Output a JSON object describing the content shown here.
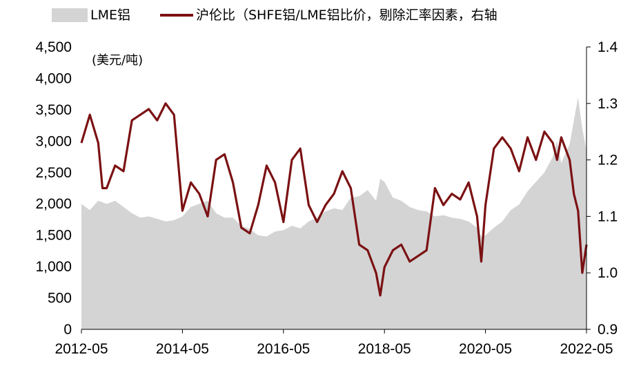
{
  "chart_data": {
    "type": "area+line",
    "legend": [
      {
        "label": "LME铝",
        "color": "#d4d4d4",
        "kind": "area"
      },
      {
        "label": "沪伦比（SHFE铝/LME铝比价，剔除汇率因素，右轴",
        "color": "#7b1113",
        "kind": "line"
      }
    ],
    "unit_label": "(美元/吨)",
    "x_ticks": [
      "2012-05",
      "2014-05",
      "2016-05",
      "2018-05",
      "2020-05",
      "2022-05"
    ],
    "x_range": [
      "2012-05",
      "2022-05"
    ],
    "y_left": {
      "ticks": [
        "0",
        "500",
        "1,000",
        "1,500",
        "2,000",
        "2,500",
        "3,000",
        "3,500",
        "4,000",
        "4,500"
      ],
      "range": [
        0,
        4500
      ]
    },
    "y_right": {
      "ticks": [
        "0.9",
        "1.0",
        "1.1",
        "1.2",
        "1.3",
        "1.4"
      ],
      "range": [
        0.9,
        1.4
      ]
    },
    "series": [
      {
        "name": "LME铝",
        "axis": "left",
        "x": [
          "2012-05",
          "2012-06",
          "2012-07",
          "2012-09",
          "2012-11",
          "2013-01",
          "2013-03",
          "2013-05",
          "2013-07",
          "2013-09",
          "2013-11",
          "2014-01",
          "2014-03",
          "2014-05",
          "2014-07",
          "2014-09",
          "2014-11",
          "2015-01",
          "2015-03",
          "2015-05",
          "2015-07",
          "2015-09",
          "2015-11",
          "2016-01",
          "2016-03",
          "2016-05",
          "2016-07",
          "2016-09",
          "2016-11",
          "2017-01",
          "2017-03",
          "2017-05",
          "2017-07",
          "2017-09",
          "2017-11",
          "2018-01",
          "2018-03",
          "2018-04",
          "2018-05",
          "2018-07",
          "2018-09",
          "2018-11",
          "2019-01",
          "2019-03",
          "2019-05",
          "2019-07",
          "2019-09",
          "2019-11",
          "2020-01",
          "2020-03",
          "2020-04",
          "2020-05",
          "2020-07",
          "2020-09",
          "2020-11",
          "2021-01",
          "2021-03",
          "2021-05",
          "2021-07",
          "2021-09",
          "2021-10",
          "2021-11",
          "2022-01",
          "2022-03",
          "2022-04",
          "2022-05"
        ],
        "values": [
          2000,
          1950,
          1900,
          2050,
          2000,
          2050,
          1950,
          1850,
          1780,
          1800,
          1760,
          1720,
          1740,
          1800,
          1950,
          2000,
          2050,
          1850,
          1780,
          1780,
          1650,
          1600,
          1500,
          1480,
          1560,
          1580,
          1650,
          1610,
          1720,
          1780,
          1880,
          1930,
          1900,
          2100,
          2120,
          2220,
          2050,
          2400,
          2350,
          2100,
          2050,
          1950,
          1900,
          1880,
          1800,
          1820,
          1780,
          1760,
          1720,
          1620,
          1480,
          1500,
          1620,
          1720,
          1900,
          1990,
          2200,
          2350,
          2500,
          2750,
          3000,
          2650,
          2950,
          3700,
          3200,
          2850
        ]
      },
      {
        "name": "沪伦比",
        "axis": "right",
        "x": [
          "2012-05",
          "2012-07",
          "2012-09",
          "2012-10",
          "2012-11",
          "2013-01",
          "2013-03",
          "2013-05",
          "2013-07",
          "2013-09",
          "2013-11",
          "2014-01",
          "2014-03",
          "2014-05",
          "2014-07",
          "2014-09",
          "2014-11",
          "2015-01",
          "2015-03",
          "2015-05",
          "2015-07",
          "2015-09",
          "2015-11",
          "2016-01",
          "2016-03",
          "2016-05",
          "2016-07",
          "2016-09",
          "2016-11",
          "2017-01",
          "2017-03",
          "2017-05",
          "2017-07",
          "2017-09",
          "2017-11",
          "2018-01",
          "2018-03",
          "2018-04",
          "2018-05",
          "2018-07",
          "2018-09",
          "2018-11",
          "2019-01",
          "2019-03",
          "2019-05",
          "2019-07",
          "2019-09",
          "2019-11",
          "2020-01",
          "2020-03",
          "2020-04",
          "2020-05",
          "2020-07",
          "2020-09",
          "2020-11",
          "2021-01",
          "2021-03",
          "2021-05",
          "2021-07",
          "2021-09",
          "2021-10",
          "2021-11",
          "2022-01",
          "2022-02",
          "2022-03",
          "2022-04",
          "2022-05"
        ],
        "values": [
          1.23,
          1.28,
          1.23,
          1.15,
          1.15,
          1.19,
          1.18,
          1.27,
          1.28,
          1.29,
          1.27,
          1.3,
          1.28,
          1.11,
          1.16,
          1.14,
          1.1,
          1.2,
          1.21,
          1.16,
          1.08,
          1.07,
          1.12,
          1.19,
          1.16,
          1.09,
          1.2,
          1.22,
          1.12,
          1.09,
          1.12,
          1.14,
          1.18,
          1.15,
          1.05,
          1.04,
          1.0,
          0.96,
          1.01,
          1.04,
          1.05,
          1.02,
          1.03,
          1.04,
          1.15,
          1.12,
          1.14,
          1.13,
          1.16,
          1.1,
          1.02,
          1.12,
          1.22,
          1.24,
          1.22,
          1.18,
          1.24,
          1.2,
          1.25,
          1.23,
          1.2,
          1.24,
          1.2,
          1.14,
          1.11,
          1.0,
          1.05
        ]
      }
    ]
  }
}
